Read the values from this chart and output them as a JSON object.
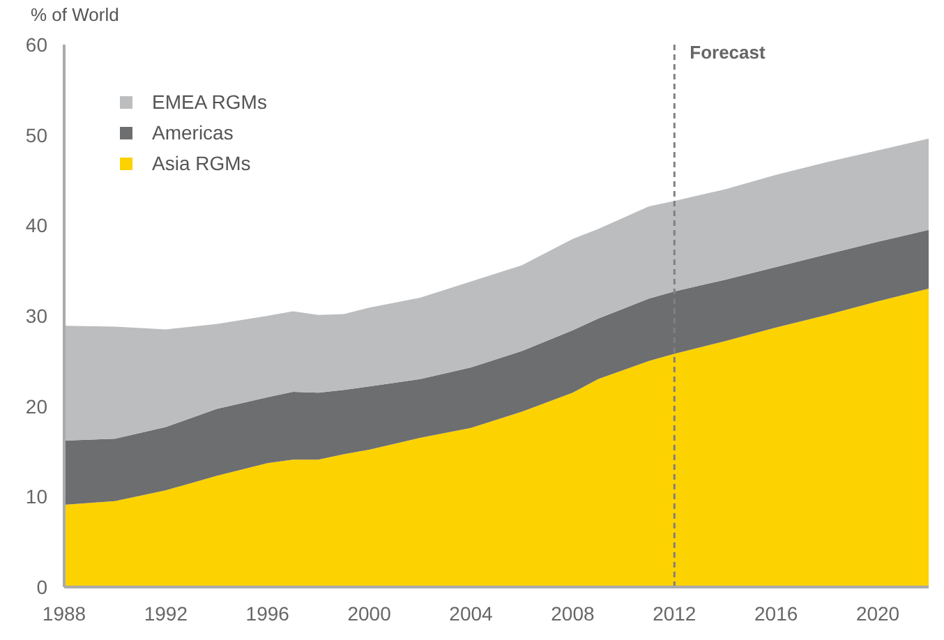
{
  "chart_data": {
    "type": "area",
    "stacked": true,
    "ylabel": "% of World",
    "x": [
      1988,
      1990,
      1992,
      1994,
      1996,
      1997,
      1998,
      1999,
      2000,
      2002,
      2004,
      2006,
      2008,
      2009,
      2011,
      2012,
      2014,
      2016,
      2018,
      2020,
      2022
    ],
    "series": [
      {
        "name": "Asia RGMs",
        "color": "#fcd200",
        "values": [
          9.1,
          9.5,
          10.7,
          12.3,
          13.7,
          14.1,
          14.1,
          14.7,
          15.2,
          16.5,
          17.6,
          19.4,
          21.5,
          23.0,
          25.0,
          25.8,
          27.2,
          28.7,
          30.1,
          31.6,
          33.0
        ]
      },
      {
        "name": "Americas",
        "color": "#6d6e70",
        "values": [
          7.1,
          6.9,
          7.0,
          7.4,
          7.3,
          7.5,
          7.4,
          7.1,
          7.0,
          6.5,
          6.7,
          6.7,
          6.9,
          6.7,
          6.9,
          6.9,
          6.8,
          6.7,
          6.7,
          6.6,
          6.5
        ]
      },
      {
        "name": "EMEA RGMs",
        "color": "#bcbdbf",
        "values": [
          12.7,
          12.4,
          10.8,
          9.4,
          9.0,
          8.9,
          8.6,
          8.4,
          8.7,
          9.0,
          9.5,
          9.5,
          10.1,
          9.9,
          10.2,
          10.0,
          10.0,
          10.2,
          10.2,
          10.1,
          10.1
        ]
      }
    ],
    "xlim": [
      1988,
      2022
    ],
    "xticks": [
      1988,
      1992,
      1996,
      2000,
      2004,
      2008,
      2012,
      2016,
      2020
    ],
    "ylim": [
      0,
      60
    ],
    "yticks": [
      0,
      10,
      20,
      30,
      40,
      50,
      60
    ],
    "ref_lines": [
      {
        "axis": "x",
        "value": 2012,
        "label": "Forecast",
        "color": "#808080",
        "line_style": "dashed"
      }
    ],
    "legend": "top left",
    "grid": false
  }
}
